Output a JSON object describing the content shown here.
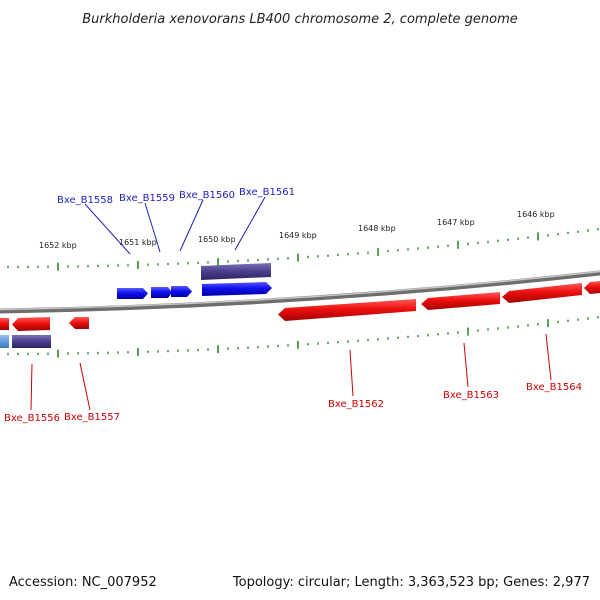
{
  "title": "Burkholderia xenovorans LB400 chromosome 2, complete genome",
  "footer": {
    "accession": "Accession: NC_007952",
    "topology": "Topology: circular; Length: 3,363,523 bp; Genes: 2,977"
  },
  "colors": {
    "backbone": "#8a8a8a",
    "forward_gene": "#1010ee",
    "reverse_gene": "#ee1010",
    "forward_rna": "#4a3f8c",
    "reverse_rna": "#4a3f8c",
    "kbp_tick": "#2a8a2a",
    "top_label": "#1f1fbf",
    "bottom_label": "#cc0000"
  },
  "kbp_labels": [
    "1652 kbp",
    "1651 kbp",
    "1650 kbp",
    "1649 kbp",
    "1648 kbp",
    "1647 kbp",
    "1646 kbp"
  ],
  "top_gene_labels": [
    "Bxe_B1558",
    "Bxe_B1559",
    "Bxe_B1560",
    "Bxe_B1561"
  ],
  "bottom_gene_labels": [
    "Bxe_B1556",
    "Bxe_B1557",
    "Bxe_B1562",
    "Bxe_B1563",
    "Bxe_B1564"
  ]
}
